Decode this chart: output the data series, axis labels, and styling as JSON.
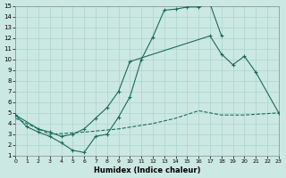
{
  "xlabel": "Humidex (Indice chaleur)",
  "bg_color": "#cce8e2",
  "grid_color": "#aad4cc",
  "line_color": "#1a6b5a",
  "xlim": [
    0,
    23
  ],
  "ylim": [
    1,
    15
  ],
  "xticks": [
    0,
    1,
    2,
    3,
    4,
    5,
    6,
    7,
    8,
    9,
    10,
    11,
    12,
    13,
    14,
    15,
    16,
    17,
    18,
    19,
    20,
    21,
    22,
    23
  ],
  "yticks": [
    1,
    2,
    3,
    4,
    5,
    6,
    7,
    8,
    9,
    10,
    11,
    12,
    13,
    14,
    15
  ],
  "s1_x": [
    0,
    1,
    2,
    3,
    4,
    5,
    6,
    7,
    8,
    9,
    10,
    11,
    12,
    13,
    14,
    15,
    16,
    17,
    18
  ],
  "s1_y": [
    4.8,
    3.7,
    3.2,
    2.8,
    2.2,
    1.5,
    1.3,
    2.8,
    3.0,
    4.6,
    6.5,
    10.0,
    12.1,
    14.6,
    14.7,
    14.9,
    14.9,
    15.2,
    12.2
  ],
  "s2_x": [
    0,
    2,
    3,
    4,
    5,
    6,
    7,
    8,
    9,
    10,
    17,
    18,
    19,
    20,
    21,
    23
  ],
  "s2_y": [
    4.8,
    3.5,
    3.2,
    2.8,
    3.0,
    3.5,
    4.5,
    5.5,
    7.0,
    9.8,
    12.2,
    10.5,
    9.5,
    10.3,
    8.8,
    5.0
  ],
  "s3_x": [
    0,
    3,
    6,
    9,
    12,
    14,
    16,
    18,
    20,
    23
  ],
  "s3_y": [
    4.5,
    3.0,
    3.2,
    3.5,
    4.0,
    4.5,
    5.2,
    4.8,
    4.8,
    5.0
  ]
}
